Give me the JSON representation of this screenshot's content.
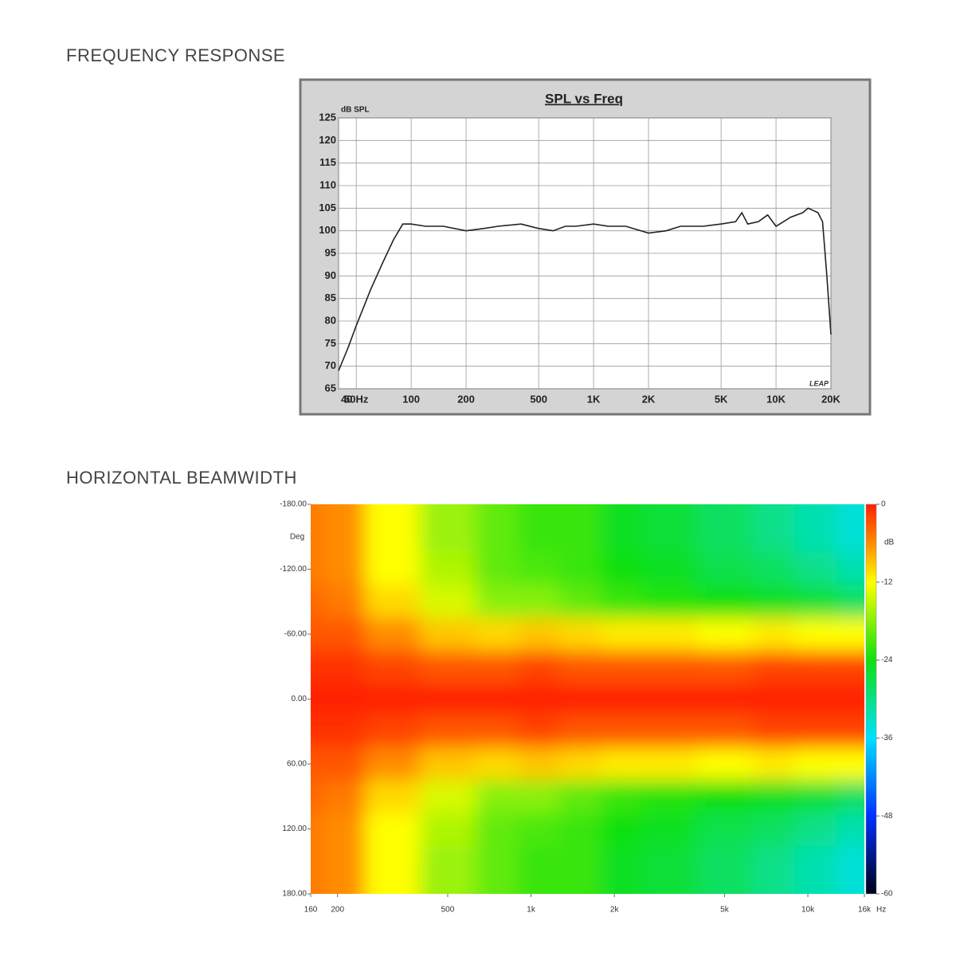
{
  "headings": [
    "FREQUENCY RESPONSE",
    "HORIZONTAL BEAMWIDTH"
  ],
  "chart_data": [
    {
      "type": "line",
      "title": "SPL vs Freq",
      "ylabel": "dB SPL",
      "watermark": "LEAP",
      "xscale": "log",
      "grid": true,
      "color": "#222222",
      "x": [
        40,
        45,
        50,
        60,
        70,
        80,
        90,
        100,
        120,
        150,
        200,
        250,
        300,
        400,
        500,
        600,
        700,
        800,
        1000,
        1200,
        1500,
        2000,
        2500,
        3000,
        4000,
        5000,
        6000,
        6500,
        7000,
        8000,
        9000,
        10000,
        11000,
        12000,
        14000,
        15000,
        16000,
        17000,
        18000,
        19000,
        20000
      ],
      "values": [
        69,
        74,
        79,
        87,
        93,
        98,
        101.5,
        101.5,
        101,
        101,
        100,
        100.5,
        101,
        101.5,
        100.5,
        100,
        101,
        101,
        101.5,
        101,
        101,
        99.5,
        100,
        101,
        101,
        101.5,
        102,
        104,
        101.5,
        102,
        103.5,
        101,
        102,
        103,
        104,
        105,
        104.5,
        104,
        102,
        90,
        77
      ],
      "xlim": [
        40,
        20000
      ],
      "xticks": [
        40,
        {
          "value": 50,
          "label": "50Hz"
        },
        100,
        200,
        500,
        {
          "value": 1000,
          "label": "1K"
        },
        {
          "value": 2000,
          "label": "2K"
        },
        {
          "value": 5000,
          "label": "5K"
        },
        {
          "value": 10000,
          "label": "10K"
        },
        {
          "value": 20000,
          "label": "20K"
        }
      ],
      "ylim": [
        65,
        125
      ],
      "yticks": [
        65,
        70,
        75,
        80,
        85,
        90,
        95,
        100,
        105,
        110,
        115,
        120,
        125
      ]
    },
    {
      "type": "heatmap",
      "ylabel": "Deg",
      "xlabel": "Hz",
      "colorbar_label": "dB",
      "xscale": "log",
      "x": [
        160,
        200,
        315,
        500,
        800,
        1000,
        1600,
        2000,
        3150,
        5000,
        8000,
        10000,
        16000
      ],
      "y": [
        -180,
        -150,
        -120,
        -90,
        -60,
        -30,
        0,
        30,
        60,
        90,
        120,
        150,
        180
      ],
      "values": [
        [
          -5,
          -6,
          -12,
          -17,
          -20,
          -22,
          -22,
          -25,
          -26,
          -28,
          -30,
          -32,
          -34
        ],
        [
          -5,
          -6,
          -12,
          -17,
          -20,
          -22,
          -22,
          -25,
          -26,
          -28,
          -30,
          -32,
          -34
        ],
        [
          -5,
          -6,
          -12,
          -16,
          -20,
          -21,
          -22,
          -24,
          -25,
          -27,
          -28,
          -30,
          -32
        ],
        [
          -4,
          -5,
          -10,
          -14,
          -18,
          -18,
          -20,
          -22,
          -23,
          -24,
          -25,
          -26,
          -28
        ],
        [
          -3,
          -3,
          -6,
          -9,
          -10,
          -9,
          -10,
          -11,
          -11,
          -12,
          -11,
          -12,
          -12
        ],
        [
          -1,
          -1,
          -2,
          -3,
          -3,
          -2,
          -3,
          -3,
          -3,
          -3,
          -2,
          -2,
          -2
        ],
        [
          0,
          0,
          0,
          0,
          0,
          0,
          0,
          0,
          0,
          0,
          0,
          0,
          0
        ],
        [
          -1,
          -1,
          -2,
          -3,
          -3,
          -2,
          -3,
          -3,
          -3,
          -3,
          -2,
          -2,
          -2
        ],
        [
          -3,
          -3,
          -6,
          -9,
          -10,
          -9,
          -10,
          -11,
          -11,
          -12,
          -11,
          -12,
          -12
        ],
        [
          -4,
          -5,
          -10,
          -14,
          -18,
          -18,
          -20,
          -22,
          -23,
          -24,
          -25,
          -26,
          -28
        ],
        [
          -5,
          -6,
          -12,
          -16,
          -20,
          -21,
          -22,
          -24,
          -25,
          -27,
          -28,
          -30,
          -32
        ],
        [
          -5,
          -6,
          -12,
          -17,
          -20,
          -22,
          -22,
          -25,
          -26,
          -28,
          -30,
          -32,
          -34
        ],
        [
          -5,
          -6,
          -12,
          -17,
          -20,
          -22,
          -22,
          -25,
          -26,
          -28,
          -30,
          -32,
          -34
        ]
      ],
      "xlim": [
        160,
        16000
      ],
      "xticks": [
        160,
        200,
        500,
        {
          "value": 1000,
          "label": "1k"
        },
        {
          "value": 2000,
          "label": "2k"
        },
        {
          "value": 5000,
          "label": "5k"
        },
        {
          "value": 10000,
          "label": "10k"
        },
        {
          "value": 16000,
          "label": "16k"
        }
      ],
      "ylim": [
        -180,
        180
      ],
      "yticks": [
        {
          "value": -180,
          "label": "-180.00"
        },
        {
          "value": -120,
          "label": "-120.00"
        },
        {
          "value": -60,
          "label": "-60.00"
        },
        {
          "value": 0,
          "label": "0.00"
        },
        {
          "value": 60,
          "label": "60.00"
        },
        {
          "value": 120,
          "label": "120.00"
        },
        {
          "value": 180,
          "label": "180.00"
        }
      ],
      "zlim": [
        -60,
        0
      ],
      "zticks": [
        0,
        -12,
        -24,
        -36,
        -48,
        -60
      ],
      "colormap": [
        {
          "value": 0,
          "color": "#ff2000"
        },
        {
          "value": -6,
          "color": "#ff8c00"
        },
        {
          "value": -12,
          "color": "#ffff00"
        },
        {
          "value": -24,
          "color": "#10e010"
        },
        {
          "value": -36,
          "color": "#00e0ff"
        },
        {
          "value": -48,
          "color": "#0030ff"
        },
        {
          "value": -60,
          "color": "#000018"
        }
      ]
    }
  ]
}
